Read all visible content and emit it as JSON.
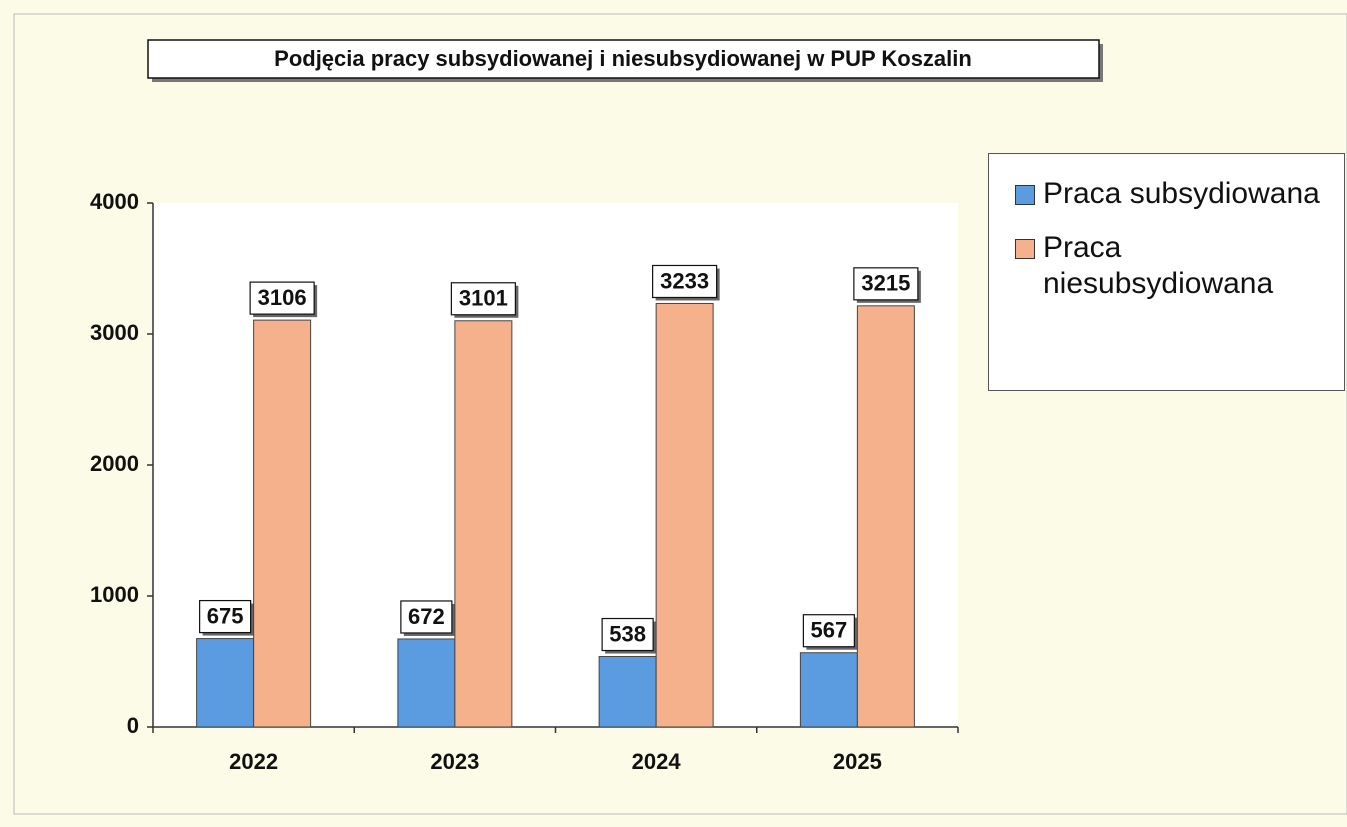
{
  "chart_data": {
    "type": "bar",
    "title": "Podjęcia pracy subsydiowanej i niesubsydiowanej w PUP Koszalin",
    "categories": [
      "2022",
      "2023",
      "2024",
      "2025"
    ],
    "series": [
      {
        "name": "Praca subsydiowana",
        "color": "#5b9be0",
        "values": [
          675,
          672,
          538,
          567
        ]
      },
      {
        "name": "Praca niesubsydiowana",
        "color": "#f5b18c",
        "values": [
          3106,
          3101,
          3233,
          3215
        ]
      }
    ],
    "ylim": [
      0,
      4000
    ],
    "yticks": [
      0,
      1000,
      2000,
      3000,
      4000
    ],
    "grid": false,
    "legend": "right"
  }
}
